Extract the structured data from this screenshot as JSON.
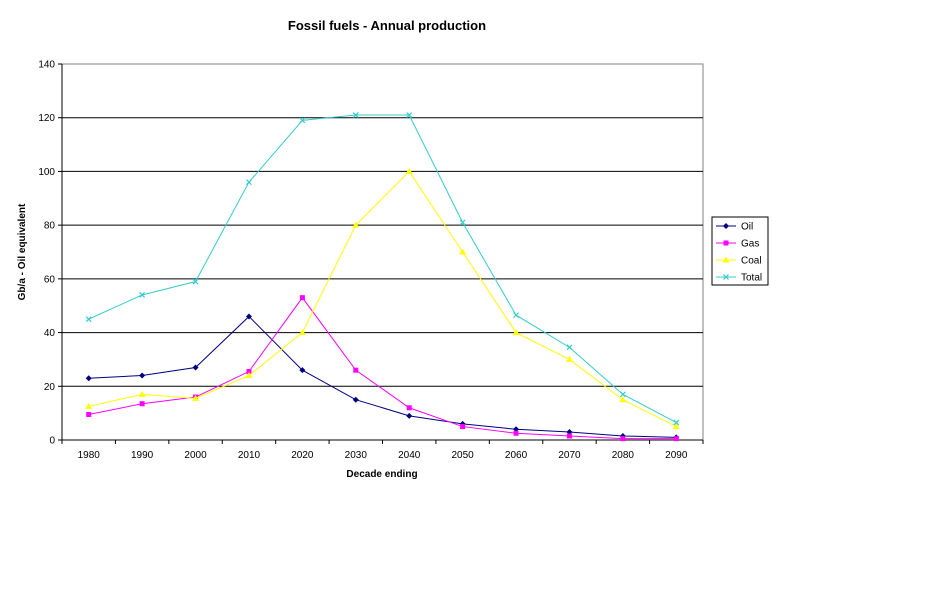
{
  "chart_data": {
    "type": "line",
    "title": "Fossil fuels - Annual production",
    "xlabel": "Decade ending",
    "ylabel": "Gb/a - Oil equivalent",
    "categories": [
      "1980",
      "1990",
      "2000",
      "2010",
      "2020",
      "2030",
      "2040",
      "2050",
      "2060",
      "2070",
      "2080",
      "2090"
    ],
    "ylim": [
      0,
      140
    ],
    "yticks": [
      0,
      20,
      40,
      60,
      80,
      100,
      120,
      140
    ],
    "grid": "horizontal",
    "legend_position": "right",
    "series": [
      {
        "name": "Oil",
        "color": "#000080",
        "marker": "diamond",
        "values": [
          23,
          24,
          27,
          46,
          26,
          15,
          9,
          6,
          4,
          3,
          1.5,
          1
        ]
      },
      {
        "name": "Gas",
        "color": "#FF00FF",
        "marker": "square",
        "values": [
          9.5,
          13.5,
          16,
          25.5,
          53,
          26,
          12,
          5,
          2.5,
          1.5,
          0.5,
          0.5
        ]
      },
      {
        "name": "Coal",
        "color": "#FFFF00",
        "marker": "triangle",
        "values": [
          12.5,
          17,
          15.5,
          24,
          40,
          80,
          100,
          70,
          40,
          30,
          15,
          5
        ]
      },
      {
        "name": "Total",
        "color": "#33CCCC",
        "marker": "x",
        "values": [
          45,
          54,
          59,
          96,
          119,
          121,
          121,
          81,
          46.5,
          34.5,
          17,
          6.5
        ]
      }
    ]
  }
}
